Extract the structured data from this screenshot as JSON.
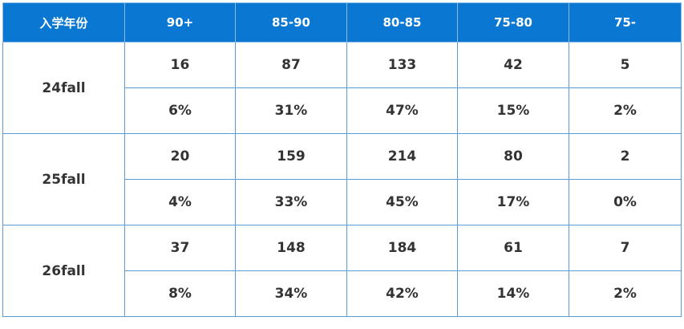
{
  "table": {
    "header": [
      "入学年份",
      "90+",
      "85-90",
      "80-85",
      "75-80",
      "75-"
    ],
    "groups": [
      {
        "label": "24fall",
        "counts": [
          "16",
          "87",
          "133",
          "42",
          "5"
        ],
        "percents": [
          "6%",
          "31%",
          "47%",
          "15%",
          "2%"
        ]
      },
      {
        "label": "25fall",
        "counts": [
          "20",
          "159",
          "214",
          "80",
          "2"
        ],
        "percents": [
          "4%",
          "33%",
          "45%",
          "17%",
          "0%"
        ]
      },
      {
        "label": "26fall",
        "counts": [
          "37",
          "148",
          "184",
          "61",
          "7"
        ],
        "percents": [
          "8%",
          "34%",
          "42%",
          "14%",
          "2%"
        ]
      }
    ]
  }
}
